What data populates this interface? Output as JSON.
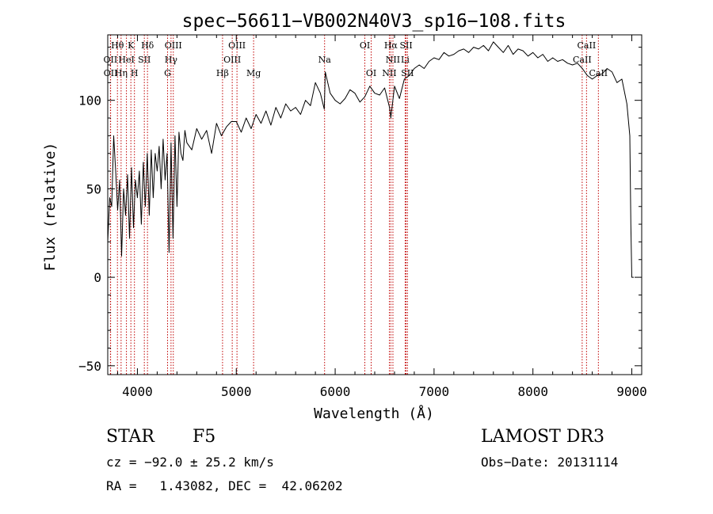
{
  "chart_data": {
    "type": "line",
    "title": "spec−56611−VB002N40V3_sp16−108.fits",
    "xlabel": "Wavelength (Å)",
    "ylabel": "Flux (relative)",
    "xlim": [
      3700,
      9100
    ],
    "ylim": [
      -55,
      137
    ],
    "x_ticks": [
      4000,
      5000,
      6000,
      7000,
      8000,
      9000
    ],
    "y_ticks": [
      -50,
      0,
      50,
      100
    ],
    "grid": false,
    "series": [
      {
        "name": "flux",
        "color": "#000000",
        "x": [
          3700,
          3720,
          3740,
          3760,
          3780,
          3800,
          3820,
          3840,
          3860,
          3880,
          3900,
          3920,
          3940,
          3960,
          3980,
          4000,
          4020,
          4040,
          4060,
          4080,
          4100,
          4120,
          4140,
          4160,
          4180,
          4200,
          4220,
          4240,
          4260,
          4280,
          4300,
          4320,
          4340,
          4360,
          4380,
          4400,
          4420,
          4440,
          4460,
          4480,
          4500,
          4550,
          4600,
          4650,
          4700,
          4750,
          4800,
          4850,
          4900,
          4950,
          5000,
          5050,
          5100,
          5150,
          5200,
          5250,
          5300,
          5350,
          5400,
          5450,
          5500,
          5550,
          5600,
          5650,
          5700,
          5750,
          5800,
          5850,
          5890,
          5900,
          5950,
          6000,
          6050,
          6100,
          6150,
          6200,
          6250,
          6300,
          6350,
          6400,
          6450,
          6500,
          6550,
          6563,
          6600,
          6650,
          6700,
          6750,
          6800,
          6850,
          6900,
          6950,
          7000,
          7050,
          7100,
          7150,
          7200,
          7250,
          7300,
          7350,
          7400,
          7450,
          7500,
          7550,
          7600,
          7650,
          7700,
          7750,
          7800,
          7850,
          7900,
          7950,
          8000,
          8050,
          8100,
          8150,
          8200,
          8250,
          8300,
          8350,
          8400,
          8450,
          8500,
          8550,
          8600,
          8650,
          8700,
          8750,
          8800,
          8850,
          8900,
          8950,
          8980,
          8990,
          9000,
          9020
        ],
        "y": [
          20,
          45,
          40,
          80,
          60,
          38,
          55,
          12,
          50,
          35,
          58,
          22,
          62,
          28,
          55,
          45,
          60,
          30,
          65,
          40,
          70,
          35,
          72,
          45,
          70,
          60,
          74,
          50,
          78,
          55,
          70,
          14,
          76,
          22,
          80,
          40,
          82,
          70,
          66,
          83,
          76,
          72,
          84,
          78,
          83,
          70,
          87,
          80,
          85,
          88,
          88,
          82,
          90,
          84,
          92,
          87,
          94,
          86,
          96,
          90,
          98,
          94,
          96,
          92,
          100,
          97,
          110,
          104,
          95,
          116,
          104,
          100,
          98,
          101,
          106,
          104,
          99,
          102,
          108,
          104,
          103,
          107,
          96,
          90,
          108,
          101,
          112,
          114,
          118,
          120,
          118,
          122,
          124,
          123,
          127,
          125,
          126,
          128,
          129,
          127,
          130,
          129,
          131,
          128,
          133,
          130,
          127,
          131,
          126,
          129,
          128,
          125,
          127,
          124,
          126,
          122,
          124,
          122,
          123,
          121,
          120,
          121,
          118,
          114,
          112,
          114,
          115,
          118,
          116,
          110,
          112,
          98,
          80,
          30,
          0,
          0
        ]
      }
    ],
    "line_markers": [
      {
        "label": "Hθ",
        "x": 3798,
        "row": 0
      },
      {
        "label": "K",
        "x": 3934,
        "row": 0
      },
      {
        "label": "Hδ",
        "x": 4102,
        "row": 0
      },
      {
        "label": "OIII",
        "x": 4363,
        "row": 0
      },
      {
        "label": "OIII",
        "x": 5007,
        "row": 0
      },
      {
        "label": "OI",
        "x": 6300,
        "row": 0
      },
      {
        "label": "Hα",
        "x": 6563,
        "row": 0
      },
      {
        "label": "SII",
        "x": 6717,
        "row": 0
      },
      {
        "label": "CaII",
        "x": 8542,
        "row": 0
      },
      {
        "label": "OII",
        "x": 3727,
        "row": 1
      },
      {
        "label": "HeI",
        "x": 3889,
        "row": 1
      },
      {
        "label": "SII",
        "x": 4070,
        "row": 1
      },
      {
        "label": "Hγ",
        "x": 4340,
        "row": 1
      },
      {
        "label": "OIII",
        "x": 4959,
        "row": 1
      },
      {
        "label": "Na",
        "x": 5893,
        "row": 1
      },
      {
        "label": "NII",
        "x": 6584,
        "row": 1
      },
      {
        "label": "Li",
        "x": 6708,
        "row": 1
      },
      {
        "label": "CaII",
        "x": 8498,
        "row": 1
      },
      {
        "label": "OII",
        "x": 3729,
        "row": 2
      },
      {
        "label": "Hη",
        "x": 3835,
        "row": 2
      },
      {
        "label": "H",
        "x": 3970,
        "row": 2
      },
      {
        "label": "G",
        "x": 4305,
        "row": 2
      },
      {
        "label": "Hβ",
        "x": 4861,
        "row": 2
      },
      {
        "label": "Mg",
        "x": 5175,
        "row": 2
      },
      {
        "label": "OI",
        "x": 6364,
        "row": 2
      },
      {
        "label": "NII",
        "x": 6548,
        "row": 2
      },
      {
        "label": "SII",
        "x": 6731,
        "row": 2
      },
      {
        "label": "CaII",
        "x": 8662,
        "row": 2
      }
    ]
  },
  "info": {
    "class_label": "STAR",
    "subclass": "F5",
    "survey": "LAMOST DR3",
    "redshift_text": "cz = −92.0 ± 25.2 km/s",
    "obs_date_text": "Obs−Date: 20131114",
    "coords_text": "RA =   1.43082, DEC =  42.06202"
  }
}
